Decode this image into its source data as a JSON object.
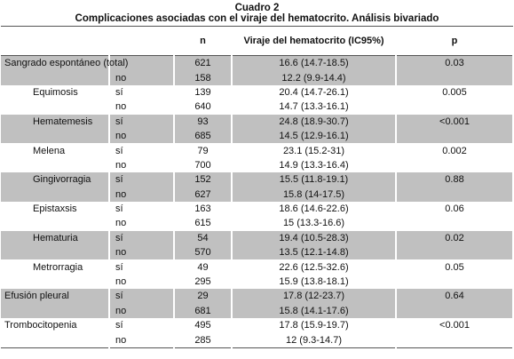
{
  "title": "Cuadro 2",
  "subtitle": "Complicaciones asociadas con el viraje del hematocrito. Análisis bivariado",
  "header": [
    "n",
    "Viraje del hematocrito (IC95%)",
    "p"
  ],
  "groups": [
    {
      "label": "Sangrado espontáneo (total)",
      "rows": [
        {
          "n": "621",
          "ci": "16.6 (14.7-18.5)",
          "p": "0.03"
        },
        {
          "sub": "no",
          "n": "158",
          "ci": "12.2 (9.9-14.4)"
        }
      ],
      "subgroups": [
        {
          "label": "Equimosis",
          "rows": [
            {
              "sub": "sí",
              "n": "139",
              "ci": "20.4 (14.7-26.1)",
              "p": "0.005"
            },
            {
              "sub": "no",
              "n": "640",
              "ci": "14.7 (13.3-16.1)"
            }
          ]
        },
        {
          "label": "Hematemesis",
          "rows": [
            {
              "sub": "sí",
              "n": "93",
              "ci": "24.8 (18.9-30.7)",
              "p": "<0.001"
            },
            {
              "sub": "no",
              "n": "685",
              "ci": "14.5 (12.9-16.1)"
            }
          ]
        },
        {
          "label": "Melena",
          "rows": [
            {
              "sub": "sí",
              "n": "79",
              "ci": "23.1 (15.2-31)",
              "p": "0.002"
            },
            {
              "sub": "no",
              "n": "700",
              "ci": "14.9 (13.3-16.4)"
            }
          ]
        },
        {
          "label": "Gingivorragia",
          "rows": [
            {
              "sub": "sí",
              "n": "152",
              "ci": "15.5 (11.8-19.1)",
              "p": "0.88"
            },
            {
              "sub": "no",
              "n": "627",
              "ci": "15.8 (14-17.5)"
            }
          ]
        },
        {
          "label": "Epistaxsis",
          "rows": [
            {
              "sub": "sí",
              "n": "163",
              "ci": "18.6 (14.6-22.6)",
              "p": "0.06"
            },
            {
              "sub": "no",
              "n": "615",
              "ci": "15 (13.3-16.6)"
            }
          ]
        },
        {
          "label": "Hematuria",
          "rows": [
            {
              "sub": "sí",
              "n": "54",
              "ci": "19.4 (10.5-28.3)",
              "p": "0.02"
            },
            {
              "sub": "no",
              "n": "570",
              "ci": "13.5 (12.1-14.8)"
            }
          ]
        },
        {
          "label": "Metrorragia",
          "rows": [
            {
              "sub": "sí",
              "n": "49",
              "ci": "22.6 (12.5-32.6)",
              "p": "0.05"
            },
            {
              "sub": "no",
              "n": "295",
              "ci": "15.9 (13.8-18.1)"
            }
          ]
        }
      ]
    },
    {
      "label": "Efusión pleural",
      "rows": [
        {
          "sub": "sí",
          "n": "29",
          "ci": "17.8 (12-23.7)",
          "p": "0.64"
        },
        {
          "sub": "no",
          "n": "681",
          "ci": "15.8 (14.1-17.6)"
        }
      ]
    },
    {
      "label": "Trombocitopenia",
      "rows": [
        {
          "sub": "sí",
          "n": "495",
          "ci": "17.8 (15.9-19.7)",
          "p": "<0.001"
        },
        {
          "sub": "no",
          "n": "285",
          "ci": "12 (9.3-14.7)"
        }
      ]
    }
  ]
}
